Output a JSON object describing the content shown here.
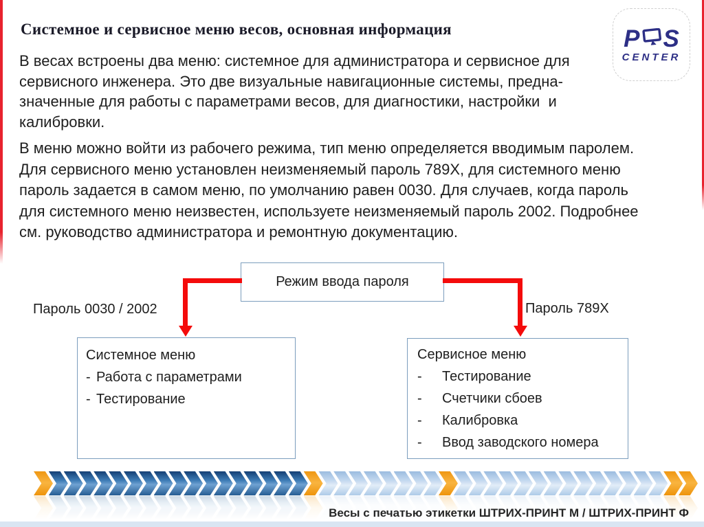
{
  "slide": {
    "title": "Системное и сервисное меню весов, основная информация",
    "logo": {
      "p": "P",
      "s": "S",
      "center": "CENTER",
      "brand_color": "#2d2f86"
    },
    "paragraph1": [
      "В весах встроены два меню: системное для администратора и сервисное для",
      "сервисного инженера. Это две визуальные навигационные системы, предна-",
      "значенные для работы с параметрами весов, для диагностики, настройки  и",
      "калибровки."
    ],
    "paragraph2": [
      "В меню можно войти из рабочего режима, тип меню определяется вводимым паролем.",
      "Для сервисного меню установлен неизменяемый пароль 789Х, для системного меню",
      "пароль задается в самом меню, по умолчанию равен 0030. Для случаев, когда пароль",
      "для системного меню неизвестен, используете неизменяемый пароль 2002. Подробнее",
      "см. руководство администратора и ремонтную документацию."
    ],
    "diagram": {
      "root_box_label": "Режим ввода пароля",
      "left_password_label": "Пароль 0030 / 2002",
      "right_password_label": "Пароль 789Х",
      "bullet": "-",
      "left_box": {
        "title": "Системное меню",
        "items": [
          "Работа с параметрами",
          "Тестирование"
        ]
      },
      "right_box": {
        "title": "Сервисное меню",
        "items": [
          "Тестирование",
          "Счетчики сбоев",
          "Калибровка",
          "Ввод заводского номера"
        ]
      },
      "arrow_color": "#f40b0b",
      "box_border_color": "#7b9dbd"
    },
    "chevron_band": {
      "colors": {
        "orange": "#f5a11e",
        "blue": "#2f6ca8",
        "light": "#b9cfe8"
      },
      "pattern": [
        "orange",
        "blue",
        "blue",
        "blue",
        "blue",
        "blue",
        "blue",
        "blue",
        "blue",
        "blue",
        "blue",
        "blue",
        "blue",
        "blue",
        "blue",
        "blue",
        "blue",
        "blue",
        "orange",
        "light",
        "light",
        "light",
        "light",
        "light",
        "light",
        "light",
        "light",
        "orange",
        "light",
        "light",
        "light",
        "light",
        "light",
        "light",
        "light",
        "light",
        "light",
        "light",
        "light",
        "light",
        "light",
        "light",
        "orange",
        "orange"
      ]
    },
    "footer": {
      "caption": "Весы с печатью этикетки ШТРИХ-ПРИНТ М / ШТРИХ-ПРИНТ Ф"
    },
    "accent_red": "#e8232e"
  }
}
